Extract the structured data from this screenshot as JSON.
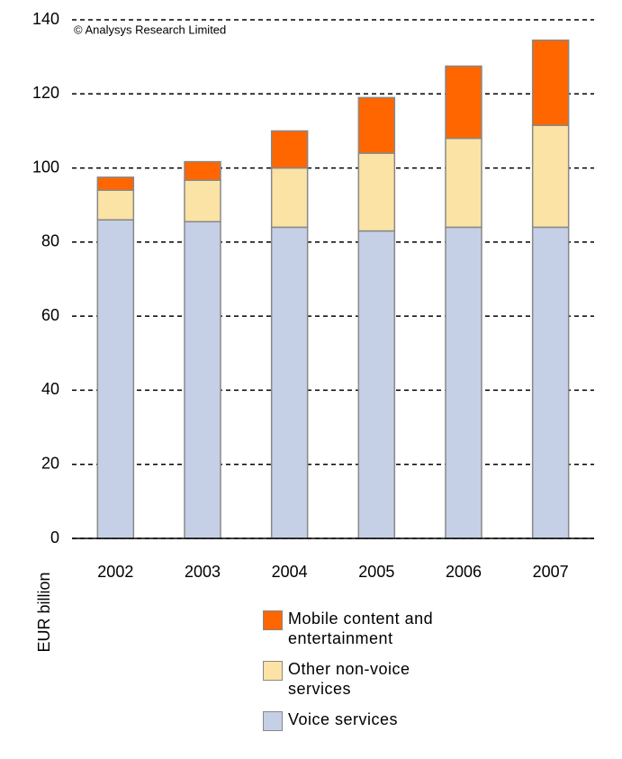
{
  "chart_data": {
    "type": "stacked_bar",
    "annotation": "© Analysys Research Limited",
    "y_label": "EUR billion",
    "categories": [
      "2002",
      "2003",
      "2004",
      "2005",
      "2006",
      "2007"
    ],
    "series": [
      {
        "name": "Voice services",
        "color": "#c5d0e6",
        "values": [
          86,
          85.5,
          84,
          83,
          84,
          84
        ]
      },
      {
        "name": "Other non-voice services",
        "color": "#fbe3a5",
        "values": [
          8,
          11.2,
          16,
          21,
          24,
          27.5
        ]
      },
      {
        "name": "Mobile content and entertainment",
        "color": "#ff6600",
        "values": [
          3.5,
          5,
          10,
          15,
          19.5,
          23
        ]
      }
    ],
    "ylim": [
      0,
      140
    ],
    "yticks": [
      0,
      20,
      40,
      60,
      80,
      100,
      120,
      140
    ],
    "grid": true
  }
}
